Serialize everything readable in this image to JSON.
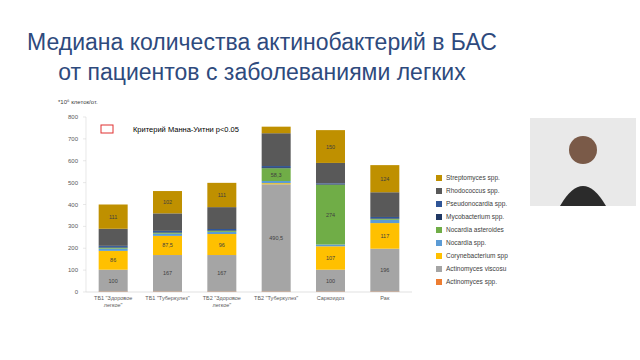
{
  "chart_data": {
    "type": "bar",
    "stacked": true,
    "title": "Медиана количества актинобактерий в БАС от пациентов с заболеваниями легких",
    "y_label": "*10⁶ клеток/от.",
    "annotation": "Критерий Манна-Уитни p<0.05",
    "categories": [
      "ТБ1 \"Здоровое легкое\"",
      "ТБ1 \"Туберкулез\"",
      "ТБ2 \"Здоровое легкое\"",
      "ТБ2 \"Туберкулез\"",
      "Саркоидоз",
      "Рак"
    ],
    "ylim": [
      0,
      800
    ],
    "yticks": [
      0,
      100,
      200,
      300,
      400,
      500,
      600,
      700,
      800
    ],
    "grid": false,
    "legend": "right",
    "series": [
      {
        "name": "Actinomyces spp.",
        "color": "#ed7d31",
        "values": [
          2,
          2,
          2,
          2,
          2,
          2
        ],
        "value_labels": [
          null,
          null,
          null,
          null,
          null,
          null
        ]
      },
      {
        "name": "Actinomyces viscosu",
        "color": "#a5a5a5",
        "values": [
          100,
          167,
          167,
          490.5,
          100,
          196
        ],
        "value_labels": [
          "100",
          "167",
          "167",
          "490,5",
          "100",
          "196"
        ]
      },
      {
        "name": "Corynebacterium spp",
        "color": "#ffc000",
        "values": [
          86,
          87.5,
          96,
          5,
          107,
          117
        ],
        "value_labels": [
          "86",
          "87,5",
          "96",
          null,
          "107",
          "117"
        ]
      },
      {
        "name": "Nocardia spp.",
        "color": "#5b9bd5",
        "values": [
          10,
          10,
          10,
          10,
          8,
          15
        ],
        "value_labels": [
          null,
          null,
          null,
          null,
          null,
          null
        ]
      },
      {
        "name": "Nocardia asteroides",
        "color": "#70ad47",
        "values": [
          5,
          5,
          5,
          58.3,
          274,
          5
        ],
        "value_labels": [
          null,
          null,
          null,
          "58,3",
          "274",
          null
        ]
      },
      {
        "name": "Mycobacterium spp.",
        "color": "#203864",
        "values": [
          3,
          3,
          3,
          5,
          3,
          3
        ],
        "value_labels": [
          null,
          null,
          null,
          null,
          null,
          null
        ]
      },
      {
        "name": "Pseudonocardia spp.",
        "color": "#2f5597",
        "values": [
          5,
          5,
          5,
          5,
          3,
          5
        ],
        "value_labels": [
          null,
          null,
          null,
          null,
          null,
          null
        ]
      },
      {
        "name": "Rhodococcus spp.",
        "color": "#595959",
        "values": [
          78,
          80,
          100,
          150,
          93,
          113
        ],
        "value_labels": [
          null,
          null,
          null,
          null,
          null,
          null
        ]
      },
      {
        "name": "Streptomyces spp.",
        "color": "#bf9000",
        "values": [
          111,
          102,
          111,
          30,
          150,
          124
        ],
        "value_labels": [
          "111",
          "102",
          "111",
          null,
          "150",
          "124"
        ]
      }
    ]
  }
}
